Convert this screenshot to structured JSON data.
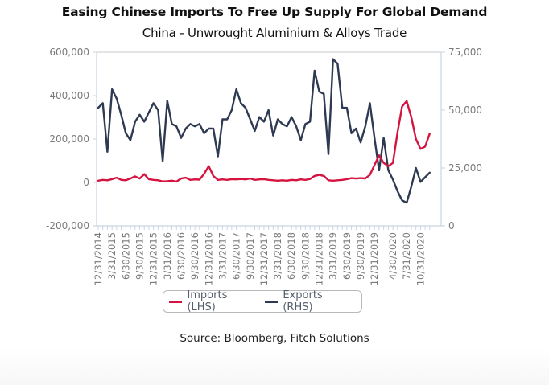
{
  "chart_data": {
    "type": "line",
    "title": "Easing Chinese Imports To Free Up Supply For Global Demand",
    "subtitle": "China - Unwrought Aluminium & Alloys Trade",
    "source": "Source: Bloomberg, Fitch Solutions",
    "x_tick_labels": [
      "12/31/2014",
      "3/31/2015",
      "6/30/2015",
      "9/30/2015",
      "12/31/2015",
      "3/31/2016",
      "6/30/2016",
      "9/30/2016",
      "12/31/2016",
      "3/31/2017",
      "6/30/2017",
      "9/30/2017",
      "12/31/2017",
      "3/31/2018",
      "6/30/2018",
      "9/30/2018",
      "12/31/2018",
      "3/31/2019",
      "6/30/2019",
      "9/30/2019",
      "12/31/2019",
      "4/30/2020",
      "7/31/2020",
      "10/31/2020"
    ],
    "x_start": "2014-12",
    "x_end": "2020-12",
    "frequency": "monthly",
    "left_axis": {
      "label": "Imports (LHS)",
      "ylim": [
        -200000,
        600000
      ],
      "ticks": [
        -200000,
        0,
        200000,
        400000,
        600000
      ],
      "tick_labels": [
        "-200,000",
        "0",
        "200,000",
        "400,000",
        "600,000"
      ]
    },
    "right_axis": {
      "label": "Exports (RHS)",
      "ylim": [
        0,
        75000
      ],
      "ticks": [
        0,
        25000,
        50000,
        75000
      ],
      "tick_labels": [
        "0",
        "25,000",
        "50,000",
        "75,000"
      ]
    },
    "grid": false,
    "legend_position": "bottom-center",
    "series": [
      {
        "name": "Imports (LHS)",
        "axis": "left",
        "color": "#d5133f",
        "values": [
          8000,
          12000,
          10000,
          15000,
          22000,
          12000,
          10000,
          18000,
          28000,
          18000,
          38000,
          15000,
          12000,
          10000,
          5000,
          6000,
          8000,
          4000,
          18000,
          22000,
          12000,
          14000,
          13000,
          40000,
          75000,
          30000,
          12000,
          14000,
          12000,
          15000,
          14000,
          16000,
          14000,
          18000,
          12000,
          14000,
          15000,
          12000,
          10000,
          8000,
          10000,
          8000,
          12000,
          10000,
          14000,
          12000,
          16000,
          30000,
          35000,
          30000,
          10000,
          8000,
          10000,
          12000,
          15000,
          20000,
          18000,
          20000,
          18000,
          35000,
          80000,
          125000,
          90000,
          75000,
          90000,
          230000,
          350000,
          375000,
          300000,
          200000,
          155000,
          165000,
          225000
        ]
      },
      {
        "name": "Exports (RHS)",
        "axis": "right",
        "color": "#2e3a52",
        "values": [
          51000,
          53000,
          32000,
          59000,
          55000,
          48000,
          40000,
          37000,
          45000,
          48000,
          45000,
          49000,
          53000,
          50000,
          28000,
          54000,
          44000,
          43000,
          38000,
          42000,
          44000,
          43000,
          44000,
          40000,
          42000,
          42000,
          30000,
          46000,
          46000,
          50000,
          59000,
          53000,
          51000,
          46000,
          41000,
          47000,
          45000,
          50000,
          39000,
          46000,
          44000,
          43000,
          47000,
          43000,
          37000,
          44000,
          45000,
          67000,
          58000,
          57000,
          31000,
          72000,
          70000,
          51000,
          51000,
          40000,
          42000,
          36000,
          43000,
          53000,
          38000,
          24000,
          38000,
          24000,
          20000,
          15000,
          11000,
          10000,
          17000,
          25000,
          19000,
          21000,
          23000
        ]
      }
    ]
  }
}
